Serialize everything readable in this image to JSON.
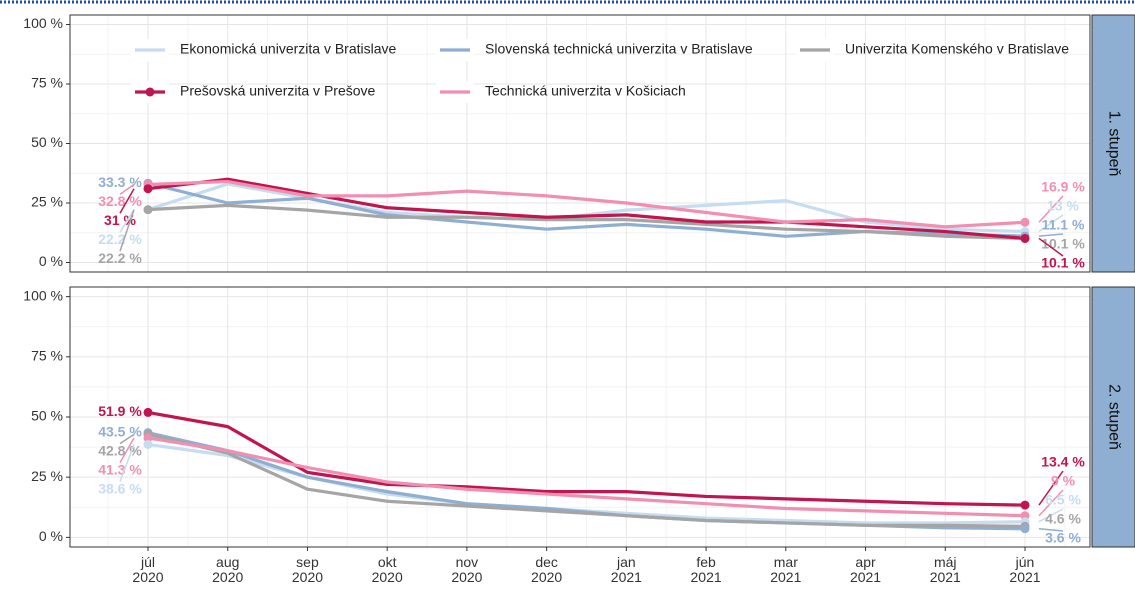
{
  "chart_data": {
    "type": "line",
    "categories": [
      "júl\n2020",
      "aug\n2020",
      "sep\n2020",
      "okt\n2020",
      "nov\n2020",
      "dec\n2020",
      "jan\n2021",
      "feb\n2021",
      "mar\n2021",
      "apr\n2021",
      "máj\n2021",
      "jún\n2021"
    ],
    "ylim": [
      -4,
      104
    ],
    "yticks": [
      {
        "value": 0,
        "label": "0 %"
      },
      {
        "value": 25,
        "label": "25 %"
      },
      {
        "value": 50,
        "label": "50 %"
      },
      {
        "value": 75,
        "label": "75 %"
      },
      {
        "value": 100,
        "label": "100 %"
      }
    ],
    "grid": true,
    "series": [
      {
        "name": "Ekonomická univerzita v Bratislave",
        "color": "#c6dcf0"
      },
      {
        "name": "Slovenská technická univerzita v Bratislave",
        "color": "#8eaed2"
      },
      {
        "name": "Univerzita Komenského v Bratislave",
        "color": "#a5a5a5"
      },
      {
        "name": "Prešovská univerzita v Prešove",
        "color": "#c0154f"
      },
      {
        "name": "Technická univerzita v Košiciach",
        "color": "#f18fb2"
      }
    ],
    "facets": [
      {
        "label": "1. stupeň",
        "series": [
          {
            "values": [
              22.2,
              33,
              27,
              21,
              19,
              18,
              22,
              24,
              26,
              17,
              14,
              13
            ],
            "value_labels": [
              "22.2 %",
              null,
              null,
              null,
              null,
              null,
              null,
              null,
              null,
              null,
              null,
              "13 %"
            ]
          },
          {
            "values": [
              33.3,
              25,
              27,
              20,
              17,
              14,
              16,
              14,
              11,
              13,
              12,
              11.1
            ],
            "value_labels": [
              "33.3 %",
              null,
              null,
              null,
              null,
              null,
              null,
              null,
              null,
              null,
              null,
              "11.1 %"
            ]
          },
          {
            "values": [
              22.2,
              24,
              22,
              19,
              19,
              18,
              18,
              16,
              14,
              13,
              11,
              10.1
            ],
            "value_labels": [
              "22.2 %",
              null,
              null,
              null,
              null,
              null,
              null,
              null,
              null,
              null,
              null,
              "10.1 %"
            ]
          },
          {
            "values": [
              31,
              35,
              29,
              23,
              21,
              19,
              20,
              17,
              17,
              15,
              13,
              10.1
            ],
            "value_labels": [
              "31 %",
              null,
              null,
              null,
              null,
              null,
              null,
              null,
              null,
              null,
              null,
              "10.1 %"
            ]
          },
          {
            "values": [
              32.8,
              34,
              28,
              28,
              30,
              28,
              25,
              21,
              17,
              18,
              15,
              16.9
            ],
            "value_labels": [
              "32.8 %",
              null,
              null,
              null,
              null,
              null,
              null,
              null,
              null,
              null,
              null,
              "16.9 %"
            ]
          }
        ]
      },
      {
        "label": "2. stupeň",
        "series": [
          {
            "values": [
              38.6,
              34,
              25,
              18,
              14,
              12,
              10,
              8,
              7,
              6,
              6,
              6.5
            ],
            "value_labels": [
              "38.6 %",
              null,
              null,
              null,
              null,
              null,
              null,
              null,
              null,
              null,
              null,
              "6.5 %"
            ]
          },
          {
            "values": [
              43.5,
              36,
              25,
              19,
              14,
              12,
              9,
              7,
              6,
              5,
              4,
              3.6
            ],
            "value_labels": [
              "43.5 %",
              null,
              null,
              null,
              null,
              null,
              null,
              null,
              null,
              null,
              null,
              "3.6 %"
            ]
          },
          {
            "values": [
              42.8,
              35,
              20,
              15,
              13,
              11,
              9,
              7,
              6,
              5,
              5,
              4.6
            ],
            "value_labels": [
              "42.8 %",
              null,
              null,
              null,
              null,
              null,
              null,
              null,
              null,
              null,
              null,
              "4.6 %"
            ]
          },
          {
            "values": [
              51.9,
              46,
              27,
              22,
              21,
              19,
              19,
              17,
              16,
              15,
              14,
              13.4
            ],
            "value_labels": [
              "51.9 %",
              null,
              null,
              null,
              null,
              null,
              null,
              null,
              null,
              null,
              null,
              "13.4 %"
            ]
          },
          {
            "values": [
              41.3,
              36,
              29,
              23,
              20,
              18,
              16,
              14,
              12,
              11,
              10,
              9
            ],
            "value_labels": [
              "41.3 %",
              null,
              null,
              null,
              null,
              null,
              null,
              null,
              null,
              null,
              null,
              "9 %"
            ]
          }
        ]
      }
    ]
  }
}
